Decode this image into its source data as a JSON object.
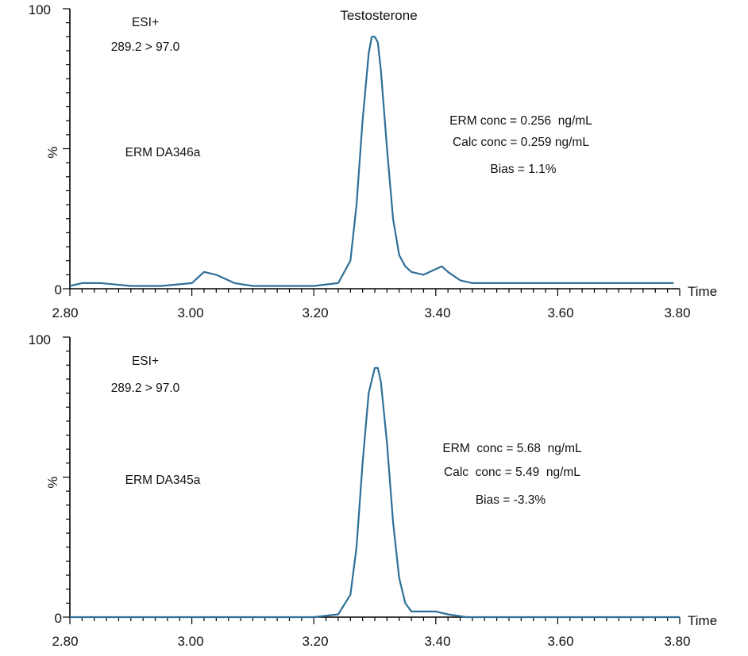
{
  "chart_data": [
    {
      "type": "line",
      "title": "Testosterone",
      "xlabel": "Time",
      "ylabel": "%",
      "xlim": [
        2.8,
        3.8
      ],
      "ylim": [
        0,
        100
      ],
      "x_ticks": [
        "2.80",
        "3.00",
        "3.20",
        "3.40",
        "3.60",
        "3.80"
      ],
      "y_ticks": [
        "0",
        "100"
      ],
      "grid": false,
      "color": "#2f6f99",
      "annotations": {
        "mode": "ESI+",
        "transition": "289.2 > 97.0",
        "sample": "ERM DA346a",
        "erm_conc": "ERM conc = 0.256  ng/mL",
        "calc_conc": "Calc conc = 0.259 ng/mL",
        "bias": "Bias = 1.1%"
      },
      "series": [
        {
          "x": [
            2.8,
            2.82,
            2.85,
            2.9,
            2.95,
            3.0,
            3.02,
            3.04,
            3.07,
            3.1,
            3.15,
            3.2,
            3.24,
            3.26,
            3.27,
            3.28,
            3.29,
            3.295,
            3.3,
            3.305,
            3.31,
            3.32,
            3.33,
            3.34,
            3.35,
            3.36,
            3.38,
            3.4,
            3.41,
            3.42,
            3.44,
            3.46,
            3.5,
            3.55,
            3.6,
            3.7,
            3.79
          ],
          "y": [
            1,
            2,
            2,
            1,
            1,
            2,
            6,
            5,
            2,
            1,
            1,
            1,
            2,
            10,
            30,
            60,
            84,
            90,
            90,
            88,
            78,
            50,
            25,
            12,
            8,
            6,
            5,
            7,
            8,
            6,
            3,
            2,
            2,
            2,
            2,
            2,
            2
          ]
        }
      ]
    },
    {
      "type": "line",
      "title": "",
      "xlabel": "Time",
      "ylabel": "%",
      "xlim": [
        2.8,
        3.8
      ],
      "ylim": [
        0,
        100
      ],
      "x_ticks": [
        "2.80",
        "3.00",
        "3.20",
        "3.40",
        "3.60",
        "3.80"
      ],
      "y_ticks": [
        "0",
        "100"
      ],
      "grid": false,
      "color": "#2f6f99",
      "annotations": {
        "mode": "ESI+",
        "transition": "289.2 > 97.0",
        "sample": "ERM DA345a",
        "erm_conc": "ERM  conc = 5.68  ng/mL",
        "calc_conc": "Calc  conc = 5.49  ng/mL",
        "bias": "Bias = -3.3%"
      },
      "series": [
        {
          "x": [
            2.8,
            2.9,
            3.0,
            3.1,
            3.2,
            3.24,
            3.26,
            3.27,
            3.28,
            3.29,
            3.3,
            3.305,
            3.31,
            3.32,
            3.33,
            3.34,
            3.35,
            3.36,
            3.4,
            3.42,
            3.45,
            3.5,
            3.6,
            3.7,
            3.8
          ],
          "y": [
            0,
            0,
            0,
            0,
            0,
            1,
            8,
            25,
            55,
            80,
            89,
            89,
            84,
            62,
            34,
            14,
            5,
            2,
            2,
            1,
            0,
            0,
            0,
            0,
            0
          ]
        }
      ]
    }
  ]
}
